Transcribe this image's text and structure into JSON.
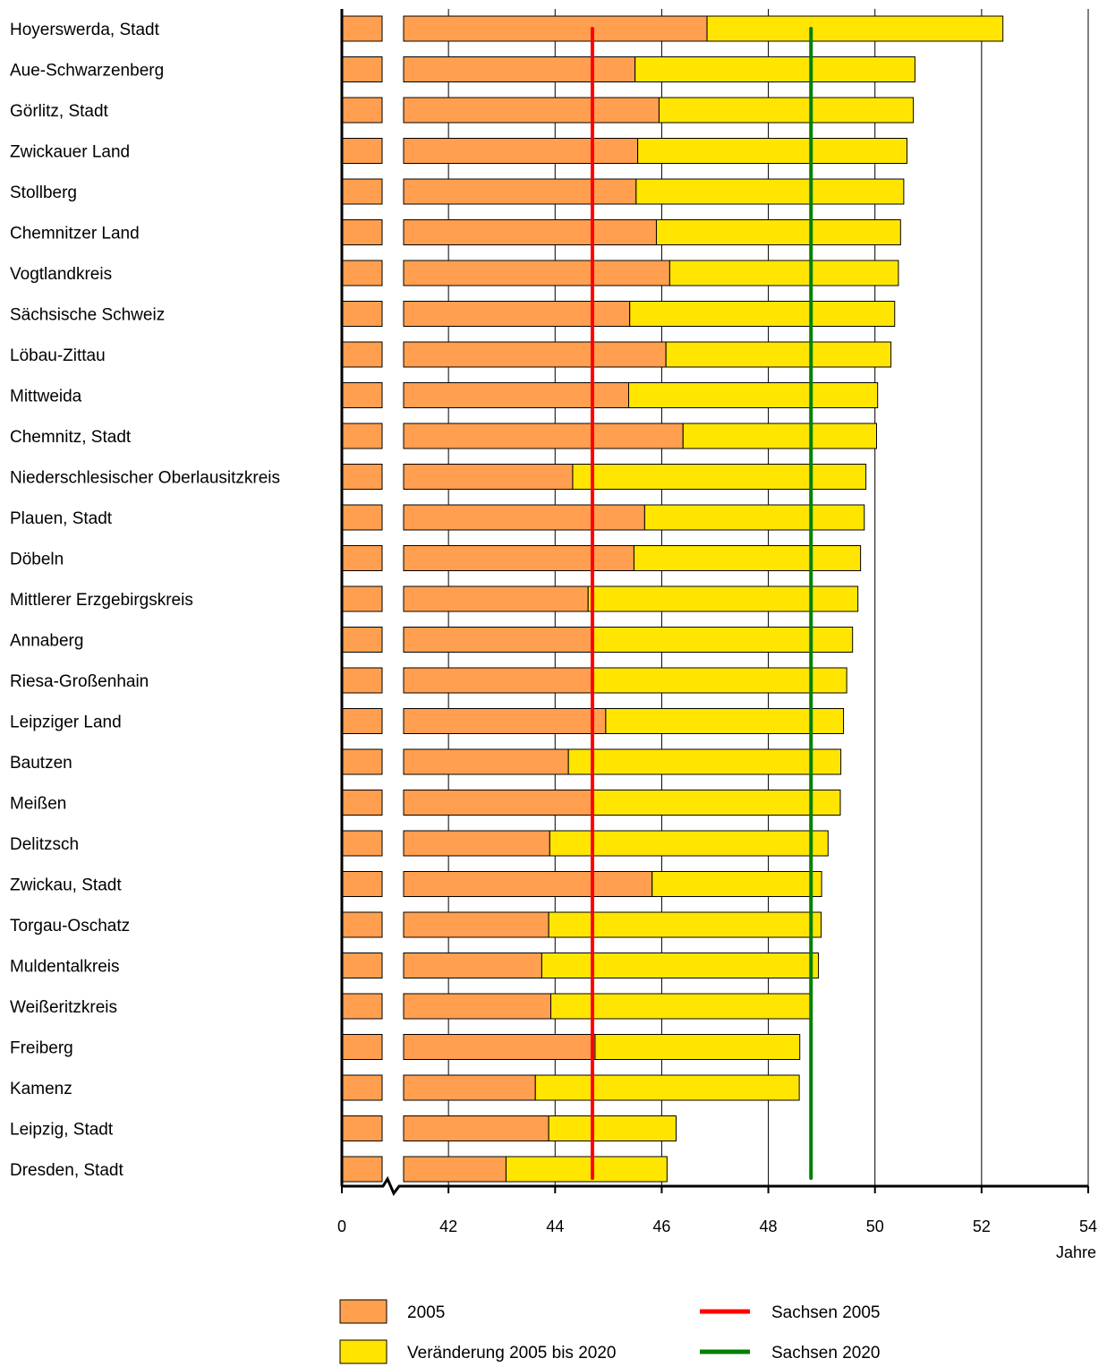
{
  "chart_data": {
    "type": "bar",
    "orientation": "horizontal",
    "stacked": true,
    "xlabel": "Jahre",
    "axis_break": true,
    "xlim": [
      40,
      54
    ],
    "x_ticks": [
      "0",
      "42",
      "44",
      "46",
      "48",
      "50",
      "52",
      "54"
    ],
    "grid": true,
    "categories": [
      "Hoyerswerda, Stadt",
      "Aue-Schwarzenberg",
      "Görlitz, Stadt",
      "Zwickauer Land",
      "Stollberg",
      "Chemnitzer Land",
      "Vogtlandkreis",
      "Sächsische Schweiz",
      "Löbau-Zittau",
      "Mittweida",
      "Chemnitz, Stadt",
      "Niederschlesischer Oberlausitzkreis",
      "Plauen, Stadt",
      "Döbeln",
      "Mittlerer Erzgebirgskreis",
      "Annaberg",
      "Riesa-Großenhain",
      "Leipziger Land",
      "Bautzen",
      "Meißen",
      "Delitzsch",
      "Zwickau, Stadt",
      "Torgau-Oschatz",
      "Muldentalkreis",
      "Weißeritzkreis",
      "Freiberg",
      "Kamenz",
      "Leipzig, Stadt",
      "Dresden, Stadt"
    ],
    "series": [
      {
        "name": "2005",
        "color": "#FF9F4F",
        "values": [
          46.85,
          45.5,
          45.95,
          45.55,
          45.52,
          45.9,
          46.15,
          45.4,
          46.08,
          45.38,
          46.4,
          44.33,
          45.68,
          45.48,
          44.62,
          44.72,
          44.72,
          44.95,
          44.25,
          44.72,
          43.9,
          45.82,
          43.88,
          43.75,
          43.92,
          44.75,
          43.63,
          43.88,
          43.08
        ]
      },
      {
        "name": "Veränderung 2005 bis 2020",
        "color": "#FFE500",
        "values": [
          5.55,
          5.25,
          4.77,
          5.05,
          5.02,
          4.58,
          4.29,
          4.97,
          4.22,
          4.67,
          3.63,
          5.5,
          4.12,
          4.25,
          5.06,
          4.86,
          4.75,
          4.46,
          5.11,
          4.63,
          5.22,
          3.18,
          5.11,
          5.19,
          4.86,
          3.84,
          4.95,
          2.39,
          3.02
        ]
      }
    ],
    "reference_lines": [
      {
        "name": "Sachsen 2005",
        "value": 44.7,
        "color": "#FF0000"
      },
      {
        "name": "Sachsen 2020",
        "value": 48.8,
        "color": "#008000"
      }
    ],
    "legend": {
      "placement": "bottom",
      "items": [
        {
          "label": "2005",
          "kind": "box",
          "color": "#FF9F4F"
        },
        {
          "label": "Veränderung 2005 bis 2020",
          "kind": "box",
          "color": "#FFE500"
        },
        {
          "label": "Sachsen 2005",
          "kind": "line",
          "color": "#FF0000"
        },
        {
          "label": "Sachsen 2020",
          "kind": "line",
          "color": "#008000"
        }
      ]
    }
  }
}
